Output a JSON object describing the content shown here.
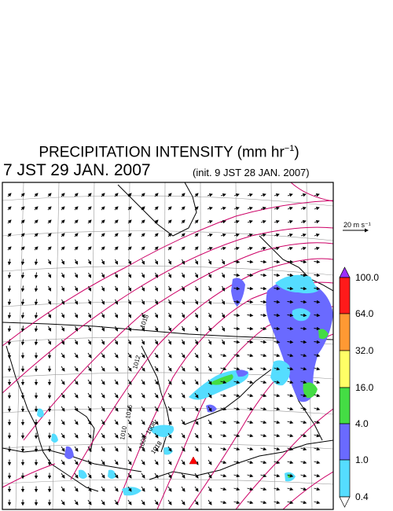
{
  "header": {
    "title_main": "PRECIPITATION INTENSITY (mm hr",
    "title_sup": "−1",
    "title_close": ")",
    "valid_time": "7 JST 29 JAN. 2007",
    "init_time": "(init. 9 JST 28 JAN. 2007)"
  },
  "wind_reference": {
    "label": "20 m s⁻¹"
  },
  "colorbar": {
    "labels": [
      "100.0",
      "64.0",
      "32.0",
      "16.0",
      "4.0",
      "1.0",
      "0.4"
    ],
    "colors": [
      "#9b30ff",
      "#ff1a1a",
      "#ff9933",
      "#ffff66",
      "#44dd44",
      "#6a6aff",
      "#55ddff",
      "#ffffff"
    ]
  },
  "isobars": {
    "color": "#cc0066",
    "labels": [
      "1018",
      "1012",
      "1016",
      "1010",
      "1008",
      "1008",
      "1018"
    ]
  },
  "palette": {
    "coast": "#000000",
    "grid": "#999999",
    "arrow": "#000000"
  }
}
